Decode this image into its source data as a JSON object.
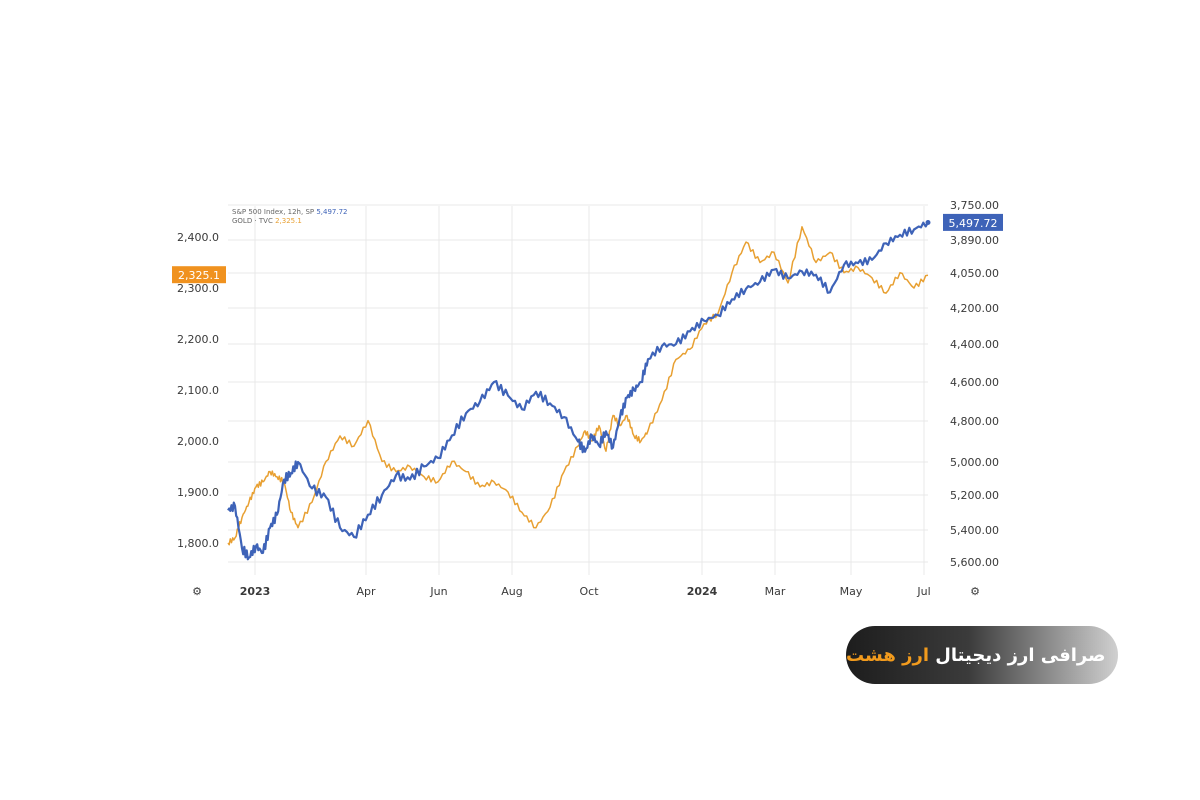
{
  "chart_data": {
    "type": "line",
    "legend": {
      "placement": "top-left",
      "entries": [
        {
          "name": "S&P 500 Index, 12h, SP",
          "last_label": "5,497.72",
          "color": "#3e63b8"
        },
        {
          "name": "GOLD · TVC",
          "last_label": "2,325.1",
          "color": "#e8a032"
        }
      ]
    },
    "x_ticks": [
      {
        "label": "2023",
        "bold": true
      },
      {
        "label": "Apr",
        "bold": false
      },
      {
        "label": "Jun",
        "bold": false
      },
      {
        "label": "Aug",
        "bold": false
      },
      {
        "label": "Oct",
        "bold": false
      },
      {
        "label": "2024",
        "bold": true
      },
      {
        "label": "Mar",
        "bold": false
      },
      {
        "label": "May",
        "bold": false
      },
      {
        "label": "Jul",
        "bold": false
      }
    ],
    "left_axis": {
      "ticks": [
        "2,400.0",
        "2,300.0",
        "2,200.0",
        "2,100.0",
        "2,000.0",
        "1,900.0",
        "1,800.0"
      ],
      "range": [
        1750,
        2430
      ],
      "last_value_badge": "2,325.1",
      "badge_color": "#f0921f"
    },
    "right_axis": {
      "ticks": [
        "5,600.00",
        "5,400.00",
        "5,200.00",
        "5,000.00",
        "4,800.00",
        "4,600.00",
        "4,400.00",
        "4,200.00",
        "4,050.00",
        "3,890.00",
        "3,750.00"
      ],
      "last_value_badge": "5,497.72",
      "badge_color": "#3e63b8"
    },
    "grid": true,
    "series": [
      {
        "name": "S&P 500 Index, 12h, SP",
        "axis": "right",
        "color": "#3e63b8",
        "x": [
          0.0,
          0.01,
          0.02,
          0.03,
          0.04,
          0.05,
          0.06,
          0.07,
          0.08,
          0.09,
          0.1,
          0.12,
          0.14,
          0.16,
          0.18,
          0.2,
          0.22,
          0.24,
          0.26,
          0.28,
          0.3,
          0.32,
          0.34,
          0.36,
          0.38,
          0.4,
          0.42,
          0.44,
          0.46,
          0.48,
          0.5,
          0.51,
          0.52,
          0.53,
          0.54,
          0.55,
          0.56,
          0.57,
          0.58,
          0.59,
          0.6,
          0.62,
          0.64,
          0.66,
          0.68,
          0.7,
          0.72,
          0.74,
          0.76,
          0.78,
          0.8,
          0.82,
          0.84,
          0.86,
          0.88,
          0.9,
          0.92,
          0.94,
          0.96,
          0.98,
          1.0
        ],
        "y": [
          3980,
          4000,
          3810,
          3770,
          3820,
          3790,
          3900,
          3960,
          4120,
          4150,
          4200,
          4080,
          4040,
          3900,
          3860,
          3960,
          4050,
          4140,
          4120,
          4180,
          4220,
          4330,
          4440,
          4500,
          4600,
          4530,
          4460,
          4550,
          4490,
          4420,
          4300,
          4250,
          4330,
          4280,
          4350,
          4270,
          4420,
          4520,
          4560,
          4600,
          4720,
          4790,
          4800,
          4870,
          4930,
          4960,
          5050,
          5110,
          5150,
          5220,
          5170,
          5210,
          5190,
          5090,
          5250,
          5260,
          5280,
          5380,
          5430,
          5460,
          5500
        ]
      },
      {
        "name": "GOLD · TVC",
        "axis": "left",
        "color": "#e8a032",
        "x": [
          0.0,
          0.01,
          0.02,
          0.03,
          0.04,
          0.05,
          0.06,
          0.07,
          0.08,
          0.09,
          0.1,
          0.12,
          0.14,
          0.16,
          0.18,
          0.2,
          0.22,
          0.24,
          0.26,
          0.28,
          0.3,
          0.32,
          0.34,
          0.36,
          0.38,
          0.4,
          0.42,
          0.44,
          0.46,
          0.48,
          0.5,
          0.51,
          0.52,
          0.53,
          0.54,
          0.55,
          0.56,
          0.57,
          0.58,
          0.59,
          0.6,
          0.62,
          0.64,
          0.66,
          0.68,
          0.7,
          0.72,
          0.74,
          0.76,
          0.78,
          0.8,
          0.82,
          0.84,
          0.86,
          0.88,
          0.9,
          0.92,
          0.94,
          0.96,
          0.98,
          1.0
        ],
        "y": [
          1800,
          1810,
          1850,
          1880,
          1910,
          1920,
          1940,
          1930,
          1920,
          1860,
          1830,
          1880,
          1960,
          2010,
          1990,
          2040,
          1960,
          1940,
          1950,
          1930,
          1920,
          1960,
          1940,
          1910,
          1920,
          1900,
          1860,
          1830,
          1870,
          1940,
          1990,
          2020,
          2000,
          2030,
          1980,
          2050,
          2030,
          2050,
          2010,
          2000,
          2020,
          2080,
          2160,
          2180,
          2230,
          2250,
          2330,
          2390,
          2350,
          2370,
          2310,
          2420,
          2350,
          2370,
          2330,
          2340,
          2320,
          2290,
          2330,
          2300,
          2325
        ]
      }
    ]
  },
  "brand": {
    "text": "صرافی ارز دیجیتال",
    "accent": "ارز هشت"
  },
  "colors": {
    "sp500": "#3e63b8",
    "gold": "#e8a032",
    "grid": "#e9e9e9"
  }
}
